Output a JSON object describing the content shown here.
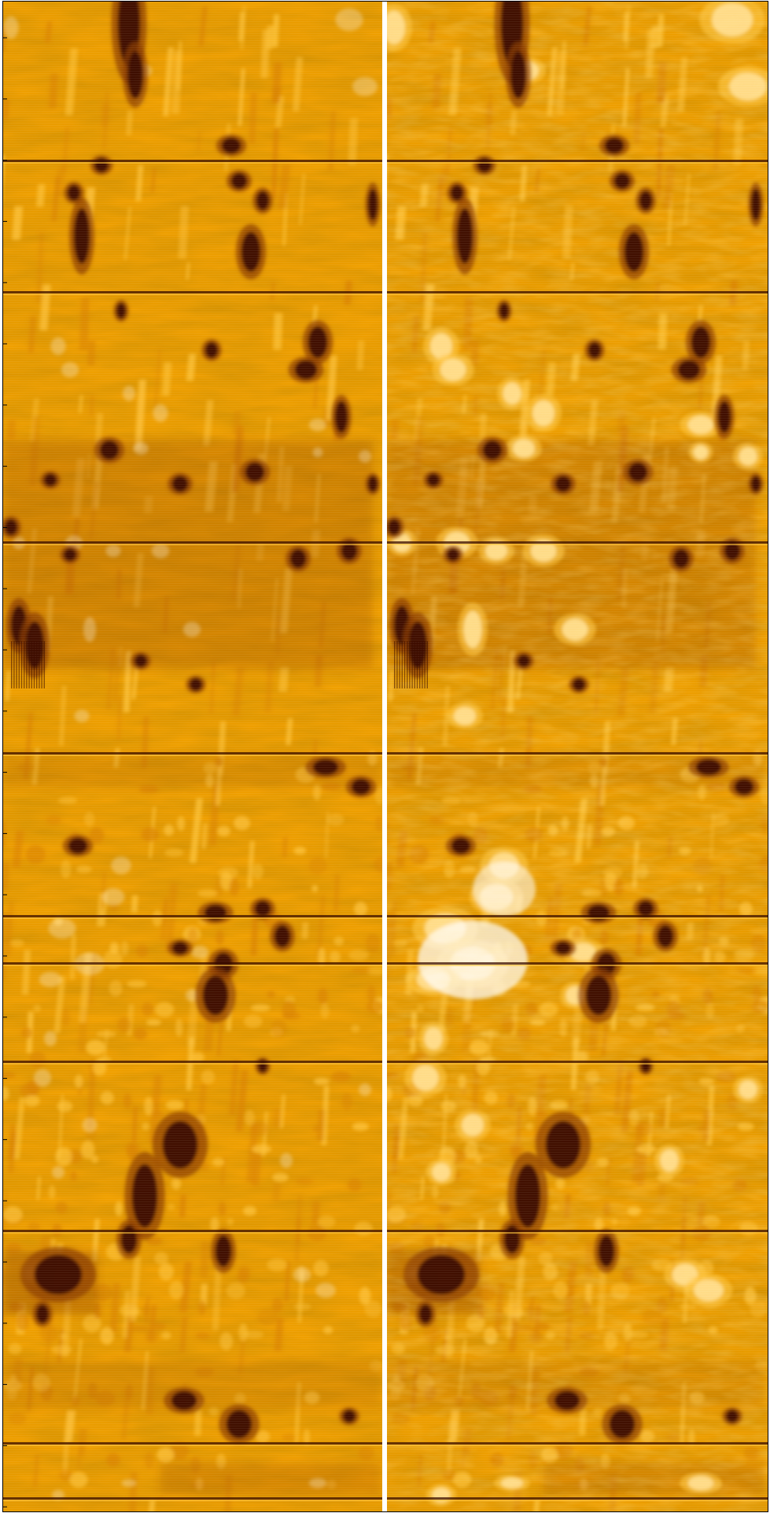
{
  "figure": {
    "description_visible_text": "",
    "panels": [
      {
        "id": "left"
      },
      {
        "id": "right"
      }
    ],
    "palette": {
      "dark": "#3a0d00",
      "deep": "#8a3c00",
      "mid": "#d98200",
      "base": "#f0a000",
      "light": "#ffc640",
      "bright": "#ffffff",
      "frame": "#000000",
      "gap": "#ffffff"
    }
  }
}
